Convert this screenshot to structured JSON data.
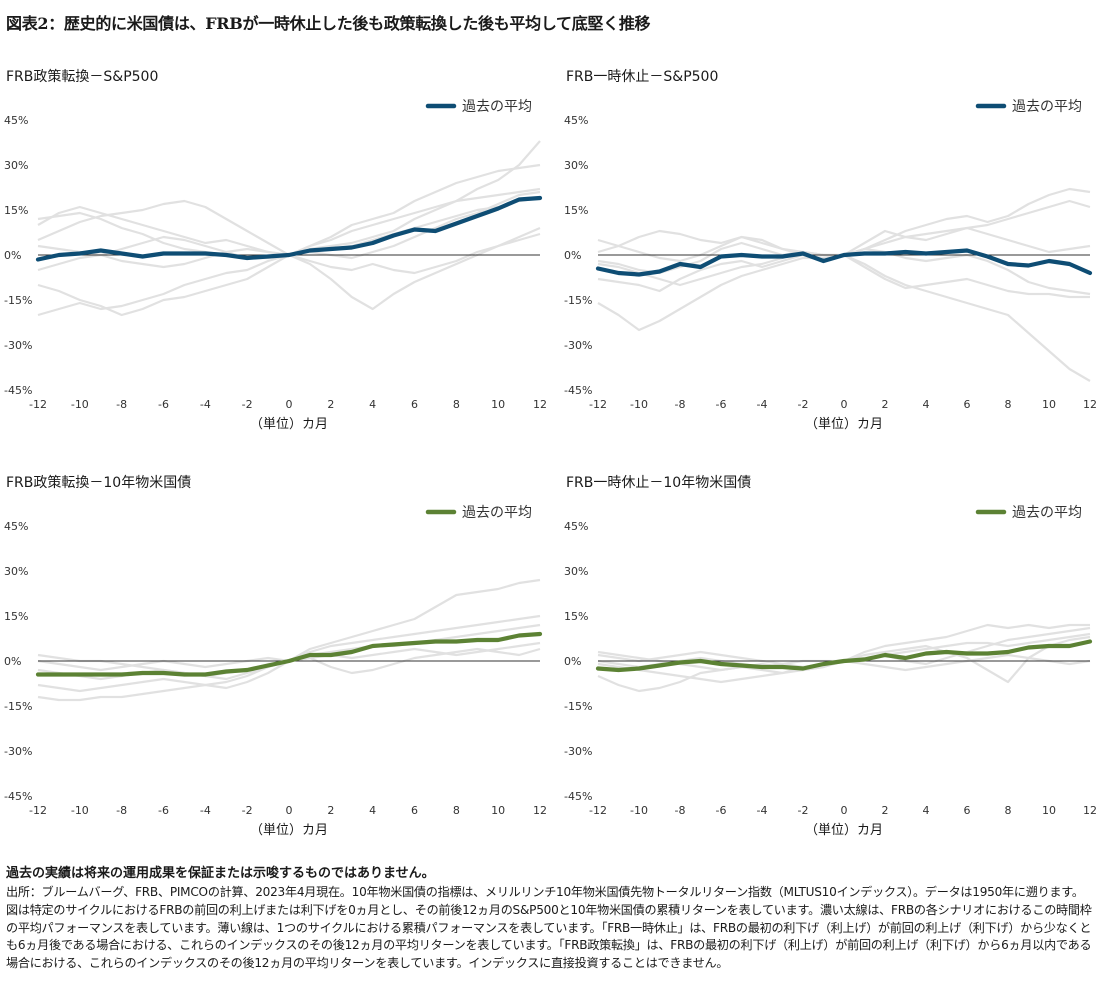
{
  "figure_title": "図表2：歴史的に米国債は、FRBが一時休止した後も政策転換した後も平均して底堅く推移",
  "disclaimer": "過去の実績は将来の運用成果を保証または示唆するものではありません。",
  "notes": "出所：ブルームバーグ、FRB、PIMCOの計算、2023年4月現在。10年物米国債の指標は、メリルリンチ10年物米国債先物トータルリターン指数（MLTUS10インデックス）。データは1950年に遡ります。図は特定のサイクルにおけるFRBの前回の利上げまたは利下げを0ヵ月とし、その前後12ヵ月のS&P500と10年物米国債の累積リターンを表しています。濃い太線は、FRBの各シナリオにおけるこの時間枠の平均パフォーマンスを表しています。薄い線は、1つのサイクルにおける累積パフォーマンスを表しています。「FRB一時休止」は、FRBの最初の利下げ（利上げ）が前回の利上げ（利下げ）から少なくとも6ヵ月後である場合における、これらのインデックスのその後12ヵ月の平均リターンを表しています。「FRB政策転換」は、FRBの最初の利下げ（利上げ）が前回の利上げ（利下げ）から6ヵ月以内である場合における、これらのインデックスのその後12ヵ月の平均リターンを表しています。インデックスに直接投資することはできません。",
  "colors": {
    "sp500_avg": "#0e4d74",
    "treasury_avg": "#5c8234",
    "cycle_line": "#e1e1e1",
    "zero_line": "#333333"
  },
  "chart_data": [
    {
      "type": "line",
      "title": "FRB政策転換－S&P500",
      "xlabel": "（単位）カ月",
      "ylabel": "",
      "xlim": [
        -12,
        12
      ],
      "ylim": [
        -45,
        45
      ],
      "x_ticks": [
        "-12",
        "-10",
        "-8",
        "-6",
        "-4",
        "-2",
        "0",
        "2",
        "4",
        "6",
        "8",
        "10",
        "12"
      ],
      "y_ticks": [
        "45%",
        "30%",
        "15%",
        "0%",
        "-15%",
        "-30%",
        "-45%"
      ],
      "legend": "top-right",
      "x": [
        -12,
        -11,
        -10,
        -9,
        -8,
        -7,
        -6,
        -5,
        -4,
        -3,
        -2,
        -1,
        0,
        1,
        2,
        3,
        4,
        5,
        6,
        7,
        8,
        9,
        10,
        11,
        12
      ],
      "series": [
        {
          "name": "過去の平均",
          "role": "average",
          "values": [
            -1.5,
            0,
            0.5,
            1.5,
            0.5,
            -0.5,
            0.5,
            0.5,
            0.5,
            0,
            -1,
            -0.5,
            0,
            1.5,
            2,
            2.5,
            4,
            6.5,
            8.5,
            8,
            10.5,
            13,
            15.5,
            18.5,
            19
          ]
        },
        {
          "role": "cycle",
          "values": [
            12,
            13,
            14,
            12,
            9,
            7,
            4,
            2,
            1,
            0,
            -1,
            -1,
            0,
            2,
            3,
            4,
            6,
            8,
            12,
            15,
            18,
            22,
            25,
            30,
            38
          ]
        },
        {
          "role": "cycle",
          "values": [
            -20,
            -18,
            -16,
            -18,
            -17,
            -15,
            -13,
            -10,
            -8,
            -6,
            -5,
            -2,
            0,
            3,
            6,
            10,
            12,
            14,
            18,
            21,
            24,
            26,
            28,
            29,
            30
          ]
        },
        {
          "role": "cycle",
          "values": [
            5,
            8,
            11,
            13,
            14,
            15,
            17,
            18,
            16,
            12,
            8,
            4,
            0,
            -3,
            -8,
            -14,
            -18,
            -13,
            -9,
            -6,
            -3,
            0,
            3,
            6,
            9
          ]
        },
        {
          "role": "cycle",
          "values": [
            -5,
            -3,
            -1,
            0,
            -2,
            -3,
            -4,
            -3,
            -1,
            1,
            2,
            1,
            0,
            -2,
            -4,
            -5,
            -3,
            -5,
            -6,
            -4,
            -2,
            1,
            3,
            5,
            7
          ]
        },
        {
          "role": "cycle",
          "values": [
            10,
            14,
            16,
            14,
            12,
            10,
            8,
            6,
            4,
            5,
            3,
            1,
            0,
            1,
            2,
            3,
            5,
            7,
            9,
            11,
            13,
            15,
            16,
            18,
            19
          ]
        },
        {
          "role": "cycle",
          "values": [
            -10,
            -12,
            -15,
            -17,
            -20,
            -18,
            -15,
            -14,
            -12,
            -10,
            -8,
            -4,
            0,
            3,
            5,
            8,
            10,
            12,
            14,
            16,
            18,
            19,
            20,
            21,
            22
          ]
        },
        {
          "role": "cycle",
          "values": [
            3,
            2,
            1,
            0,
            2,
            4,
            6,
            5,
            3,
            1,
            -1,
            -1,
            0,
            1,
            0,
            -1,
            1,
            3,
            6,
            9,
            12,
            14,
            17,
            20,
            21
          ]
        }
      ]
    },
    {
      "type": "line",
      "title": "FRB一時休止－S&P500",
      "xlabel": "（単位）カ月",
      "ylabel": "",
      "xlim": [
        -12,
        12
      ],
      "ylim": [
        -45,
        45
      ],
      "x_ticks": [
        "-12",
        "-10",
        "-8",
        "-6",
        "-4",
        "-2",
        "0",
        "2",
        "4",
        "6",
        "8",
        "10",
        "12"
      ],
      "y_ticks": [
        "45%",
        "30%",
        "15%",
        "0%",
        "-15%",
        "-30%",
        "-45%"
      ],
      "legend": "top-right",
      "x": [
        -12,
        -11,
        -10,
        -9,
        -8,
        -7,
        -6,
        -5,
        -4,
        -3,
        -2,
        -1,
        0,
        1,
        2,
        3,
        4,
        5,
        6,
        7,
        8,
        9,
        10,
        11,
        12
      ],
      "series": [
        {
          "name": "過去の平均",
          "role": "average",
          "values": [
            -4.5,
            -6,
            -6.5,
            -5.5,
            -3,
            -4,
            -0.5,
            0,
            -0.5,
            -0.5,
            0.5,
            -2,
            0,
            0.5,
            0.5,
            1,
            0.5,
            1,
            1.5,
            -0.5,
            -3,
            -3.5,
            -2,
            -3,
            -6
          ]
        },
        {
          "role": "cycle",
          "values": [
            -16,
            -20,
            -25,
            -22,
            -18,
            -14,
            -10,
            -7,
            -5,
            -3,
            -1,
            -1,
            0,
            2,
            5,
            8,
            10,
            12,
            13,
            11,
            13,
            17,
            20,
            22,
            21
          ]
        },
        {
          "role": "cycle",
          "values": [
            1,
            3,
            6,
            8,
            7,
            5,
            4,
            6,
            4,
            2,
            1,
            0,
            0,
            -3,
            -7,
            -10,
            -12,
            -14,
            -16,
            -18,
            -20,
            -26,
            -32,
            -38,
            -42
          ]
        },
        {
          "role": "cycle",
          "values": [
            -8,
            -9,
            -10,
            -12,
            -8,
            -5,
            -3,
            -2,
            -4,
            -2,
            0,
            -1,
            0,
            2,
            4,
            6,
            7,
            8,
            9,
            10,
            12,
            14,
            16,
            18,
            16
          ]
        },
        {
          "role": "cycle",
          "values": [
            -2,
            -3,
            -5,
            -6,
            -4,
            -2,
            2,
            4,
            2,
            0,
            1,
            0,
            0,
            -4,
            -8,
            -11,
            -10,
            -9,
            -8,
            -10,
            -12,
            -13,
            -13,
            -14,
            -14
          ]
        },
        {
          "role": "cycle",
          "values": [
            5,
            3,
            1,
            -1,
            -2,
            0,
            3,
            6,
            5,
            2,
            0,
            -1,
            0,
            4,
            8,
            6,
            5,
            7,
            9,
            7,
            5,
            3,
            1,
            2,
            3
          ]
        },
        {
          "role": "cycle",
          "values": [
            -3,
            -4,
            -6,
            -8,
            -10,
            -8,
            -6,
            -4,
            -3,
            -1,
            1,
            0,
            0,
            2,
            1,
            -1,
            -2,
            -1,
            0,
            -2,
            -5,
            -9,
            -11,
            -12,
            -13
          ]
        }
      ]
    },
    {
      "type": "line",
      "title": "FRB政策転換－10年物米国債",
      "xlabel": "（単位）カ月",
      "ylabel": "",
      "xlim": [
        -12,
        12
      ],
      "ylim": [
        -45,
        45
      ],
      "x_ticks": [
        "-12",
        "-10",
        "-8",
        "-6",
        "-4",
        "-2",
        "0",
        "2",
        "4",
        "6",
        "8",
        "10",
        "12"
      ],
      "y_ticks": [
        "45%",
        "30%",
        "15%",
        "0%",
        "-15%",
        "-30%",
        "-45%"
      ],
      "legend": "top-right",
      "x": [
        -12,
        -11,
        -10,
        -9,
        -8,
        -7,
        -6,
        -5,
        -4,
        -3,
        -2,
        -1,
        0,
        1,
        2,
        3,
        4,
        5,
        6,
        7,
        8,
        9,
        10,
        11,
        12
      ],
      "series": [
        {
          "name": "過去の平均",
          "role": "average",
          "values": [
            -4.5,
            -4.5,
            -4.5,
            -4.5,
            -4.5,
            -4,
            -4,
            -4.5,
            -4.5,
            -3.5,
            -3,
            -1.5,
            0,
            2,
            2,
            3,
            5,
            5.5,
            6,
            6.5,
            6.5,
            7,
            7,
            8.5,
            9
          ]
        },
        {
          "role": "cycle",
          "values": [
            -12,
            -13,
            -13,
            -12,
            -12,
            -11,
            -10,
            -9,
            -8,
            -7,
            -5,
            -2,
            0,
            4,
            6,
            8,
            10,
            12,
            14,
            18,
            22,
            23,
            24,
            26,
            27
          ]
        },
        {
          "role": "cycle",
          "values": [
            2,
            1,
            0,
            0,
            -1,
            -2,
            -3,
            -4,
            -5,
            -4,
            -3,
            -1,
            0,
            2,
            3,
            4,
            5,
            5,
            6,
            7,
            8,
            9,
            10,
            11,
            12
          ]
        },
        {
          "role": "cycle",
          "values": [
            -8,
            -9,
            -10,
            -9,
            -8,
            -7,
            -6,
            -7,
            -8,
            -9,
            -7,
            -4,
            0,
            1,
            -2,
            -4,
            -3,
            -1,
            1,
            2,
            3,
            4,
            3,
            2,
            4
          ]
        },
        {
          "role": "cycle",
          "values": [
            0,
            -1,
            -2,
            -3,
            -2,
            -1,
            0,
            -1,
            -2,
            -1,
            0,
            1,
            0,
            1,
            2,
            1,
            2,
            3,
            4,
            3,
            2,
            3,
            4,
            5,
            6
          ]
        },
        {
          "role": "cycle",
          "values": [
            -3,
            -4,
            -5,
            -6,
            -5,
            -4,
            -3,
            -4,
            -5,
            -6,
            -4,
            -2,
            0,
            3,
            5,
            6,
            7,
            8,
            9,
            10,
            11,
            12,
            13,
            14,
            15
          ]
        }
      ]
    },
    {
      "type": "line",
      "title": "FRB一時休止－10年物米国債",
      "xlabel": "（単位）カ月",
      "ylabel": "",
      "xlim": [
        -12,
        12
      ],
      "ylim": [
        -45,
        45
      ],
      "x_ticks": [
        "-12",
        "-10",
        "-8",
        "-6",
        "-4",
        "-2",
        "0",
        "2",
        "4",
        "6",
        "8",
        "10",
        "12"
      ],
      "y_ticks": [
        "45%",
        "30%",
        "15%",
        "0%",
        "-15%",
        "-30%",
        "-45%"
      ],
      "legend": "top-right",
      "x": [
        -12,
        -11,
        -10,
        -9,
        -8,
        -7,
        -6,
        -5,
        -4,
        -3,
        -2,
        -1,
        0,
        1,
        2,
        3,
        4,
        5,
        6,
        7,
        8,
        9,
        10,
        11,
        12
      ],
      "series": [
        {
          "name": "過去の平均",
          "role": "average",
          "values": [
            -2.5,
            -3,
            -2.5,
            -1.5,
            -0.5,
            0,
            -1,
            -1.5,
            -2,
            -2,
            -2.5,
            -1,
            0,
            0.5,
            2,
            1,
            2.5,
            3,
            2.5,
            2.5,
            3,
            4.5,
            5,
            5,
            6.5
          ]
        },
        {
          "role": "cycle",
          "values": [
            -5,
            -8,
            -10,
            -9,
            -7,
            -4,
            -3,
            -2,
            -3,
            -4,
            -2,
            -1,
            0,
            3,
            5,
            6,
            7,
            8,
            10,
            12,
            11,
            12,
            11,
            12,
            12
          ]
        },
        {
          "role": "cycle",
          "values": [
            2,
            1,
            0,
            1,
            2,
            3,
            2,
            1,
            0,
            -1,
            -2,
            -1,
            0,
            1,
            2,
            0,
            -1,
            1,
            3,
            5,
            7,
            8,
            9,
            10,
            11
          ]
        },
        {
          "role": "cycle",
          "values": [
            -1,
            -2,
            -3,
            -4,
            -5,
            -6,
            -7,
            -6,
            -5,
            -4,
            -3,
            -2,
            0,
            2,
            3,
            4,
            5,
            3,
            1,
            -3,
            -7,
            1,
            5,
            7,
            8
          ]
        },
        {
          "role": "cycle",
          "values": [
            0,
            -1,
            -2,
            -1,
            0,
            1,
            0,
            -1,
            -2,
            -1,
            0,
            0,
            0,
            -1,
            -2,
            -3,
            -2,
            -1,
            0,
            1,
            2,
            1,
            0,
            -1,
            0
          ]
        },
        {
          "role": "cycle",
          "values": [
            3,
            2,
            1,
            0,
            -1,
            -2,
            -3,
            -2,
            -1,
            -2,
            -3,
            -2,
            0,
            1,
            2,
            3,
            4,
            5,
            6,
            6,
            5,
            6,
            7,
            8,
            9
          ]
        }
      ]
    }
  ]
}
